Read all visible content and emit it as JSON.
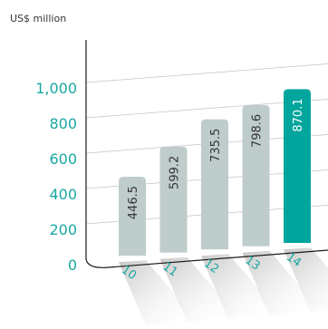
{
  "chart_data": {
    "type": "bar",
    "ylabel": "US$ million",
    "categories": [
      "10",
      "11",
      "12",
      "13",
      "14"
    ],
    "values": [
      446.5,
      599.2,
      735.5,
      798.6,
      870.1
    ],
    "value_labels": [
      "446.5",
      "599.2",
      "735.5",
      "798.6",
      "870.1"
    ],
    "yticks": [
      "0",
      "200",
      "400",
      "600",
      "800",
      "1,000"
    ],
    "ylim": [
      0,
      1000
    ],
    "grid": true,
    "highlight_category": "14",
    "colors": {
      "bar": "#bfcccc",
      "highlight": "#00a59d",
      "tick_text": "#1aa7a1",
      "grid": "#c8c8c8",
      "axis": "#1a1a1a"
    }
  }
}
